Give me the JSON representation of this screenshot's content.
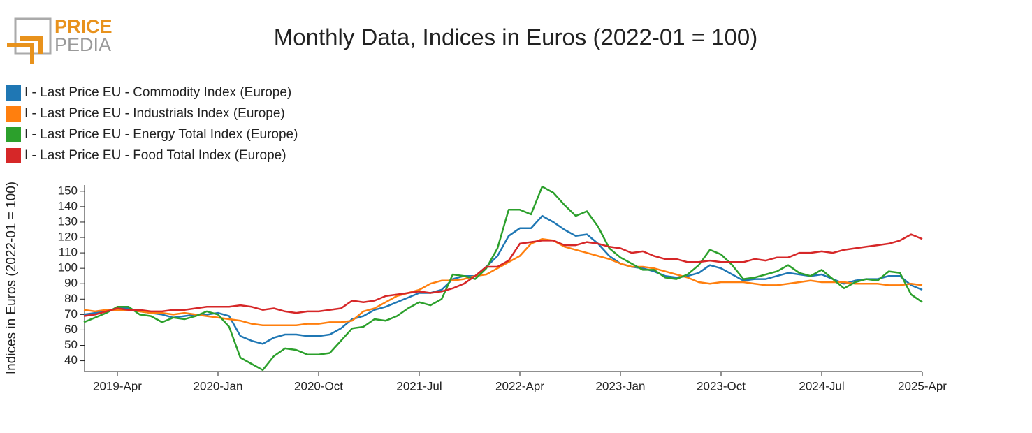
{
  "logo": {
    "top": "PRICE",
    "bottom": "PEDIA"
  },
  "chart_data": {
    "type": "line",
    "title": "Monthly Data, Indices in Euros (2022-01 = 100)",
    "y_label": "Indices in Euros (2022-01 = 100)",
    "x": [
      "2019-01",
      "2019-02",
      "2019-03",
      "2019-04",
      "2019-05",
      "2019-06",
      "2019-07",
      "2019-08",
      "2019-09",
      "2019-10",
      "2019-11",
      "2019-12",
      "2020-01",
      "2020-02",
      "2020-03",
      "2020-04",
      "2020-05",
      "2020-06",
      "2020-07",
      "2020-08",
      "2020-09",
      "2020-10",
      "2020-11",
      "2020-12",
      "2021-01",
      "2021-02",
      "2021-03",
      "2021-04",
      "2021-05",
      "2021-06",
      "2021-07",
      "2021-08",
      "2021-09",
      "2021-10",
      "2021-11",
      "2021-12",
      "2022-01",
      "2022-02",
      "2022-03",
      "2022-04",
      "2022-05",
      "2022-06",
      "2022-07",
      "2022-08",
      "2022-09",
      "2022-10",
      "2022-11",
      "2022-12",
      "2023-01",
      "2023-02",
      "2023-03",
      "2023-04",
      "2023-05",
      "2023-06",
      "2023-07",
      "2023-08",
      "2023-09",
      "2023-10",
      "2023-11",
      "2023-12",
      "2024-01",
      "2024-02",
      "2024-03",
      "2024-04",
      "2024-05",
      "2024-06",
      "2024-07",
      "2024-08",
      "2024-09",
      "2024-10",
      "2024-11",
      "2024-12",
      "2025-01",
      "2025-02",
      "2025-03",
      "2025-04"
    ],
    "xticks": [
      {
        "value": "2019-04",
        "label": "2019-Apr"
      },
      {
        "value": "2020-01",
        "label": "2020-Jan"
      },
      {
        "value": "2020-10",
        "label": "2020-Oct"
      },
      {
        "value": "2021-07",
        "label": "2021-Jul"
      },
      {
        "value": "2022-04",
        "label": "2022-Apr"
      },
      {
        "value": "2023-01",
        "label": "2023-Jan"
      },
      {
        "value": "2023-10",
        "label": "2023-Oct"
      },
      {
        "value": "2024-07",
        "label": "2024-Jul"
      },
      {
        "value": "2025-04",
        "label": "2025-Apr"
      }
    ],
    "ylim": [
      33,
      154
    ],
    "yticks": [
      40,
      50,
      60,
      70,
      80,
      90,
      100,
      110,
      120,
      130,
      140,
      150
    ],
    "grid": false,
    "legend": "top-left",
    "series": [
      {
        "name": "I - Last Price EU - Commodity Index (Europe)",
        "color": "#1f77b4",
        "values": [
          70,
          71,
          72,
          74,
          74,
          72,
          71,
          70,
          68,
          69,
          70,
          70,
          71,
          69,
          56,
          53,
          51,
          55,
          57,
          57,
          56,
          56,
          57,
          61,
          67,
          69,
          73,
          75,
          78,
          81,
          84,
          84,
          86,
          93,
          95,
          95,
          101,
          108,
          121,
          126,
          126,
          134,
          130,
          125,
          121,
          122,
          116,
          108,
          103,
          101,
          100,
          98,
          95,
          94,
          95,
          97,
          102,
          100,
          96,
          92,
          93,
          93,
          95,
          97,
          96,
          95,
          96,
          93,
          90,
          92,
          93,
          93,
          95,
          95,
          89,
          86
        ]
      },
      {
        "name": "I - Last Price EU - Industrials Index (Europe)",
        "color": "#ff7f0e",
        "values": [
          73,
          72,
          73,
          73,
          73,
          72,
          71,
          71,
          70,
          71,
          70,
          69,
          68,
          67,
          66,
          64,
          63,
          63,
          63,
          63,
          64,
          64,
          65,
          65,
          66,
          72,
          74,
          78,
          82,
          84,
          86,
          90,
          92,
          92,
          93,
          95,
          96,
          100,
          104,
          108,
          116,
          119,
          118,
          114,
          112,
          110,
          108,
          106,
          103,
          101,
          101,
          100,
          98,
          96,
          94,
          91,
          90,
          91,
          91,
          91,
          90,
          89,
          89,
          90,
          91,
          92,
          91,
          91,
          91,
          90,
          90,
          90,
          89,
          89,
          90,
          89
        ]
      },
      {
        "name": "I - Last Price EU - Energy Total Index (Europe)",
        "color": "#2ca02c",
        "values": [
          65,
          68,
          71,
          75,
          75,
          70,
          69,
          65,
          68,
          67,
          69,
          72,
          70,
          62,
          42,
          38,
          34,
          43,
          48,
          47,
          44,
          44,
          45,
          53,
          61,
          62,
          67,
          66,
          69,
          74,
          78,
          76,
          80,
          96,
          95,
          93,
          100,
          113,
          138,
          138,
          135,
          153,
          149,
          141,
          134,
          137,
          127,
          113,
          107,
          103,
          99,
          99,
          94,
          93,
          96,
          102,
          112,
          109,
          102,
          93,
          94,
          96,
          98,
          102,
          97,
          95,
          99,
          93,
          87,
          91,
          93,
          92,
          98,
          97,
          83,
          78
        ]
      },
      {
        "name": "I - Last Price EU - Food Total Index (Europe)",
        "color": "#d62728",
        "values": [
          69,
          70,
          72,
          74,
          73,
          73,
          72,
          72,
          73,
          73,
          74,
          75,
          75,
          75,
          76,
          75,
          73,
          74,
          72,
          71,
          72,
          72,
          73,
          74,
          79,
          78,
          79,
          82,
          83,
          84,
          85,
          84,
          85,
          87,
          90,
          95,
          101,
          101,
          105,
          116,
          117,
          118,
          118,
          115,
          115,
          117,
          116,
          114,
          113,
          110,
          111,
          108,
          106,
          106,
          104,
          104,
          105,
          104,
          104,
          104,
          106,
          105,
          107,
          107,
          110,
          110,
          111,
          110,
          112,
          113,
          114,
          115,
          116,
          118,
          122,
          119
        ]
      }
    ]
  }
}
